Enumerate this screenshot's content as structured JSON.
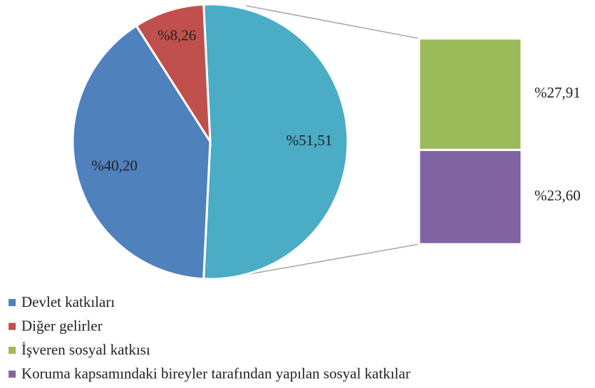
{
  "chart_data": {
    "type": "bar-of-pie",
    "categories": [
      "Devlet katkıları",
      "Diğer gelirler",
      "İşveren sosyal katkısı",
      "Koruma kapsamındaki bireyler tarafından yapılan sosyal katkılar"
    ],
    "values": [
      40.2,
      8.26,
      27.91,
      23.6
    ],
    "value_labels": [
      "%40,20",
      "%8,26",
      "%27,91",
      "%23,60"
    ],
    "colors": [
      "#4f81bd",
      "#c0504d",
      "#9bbb59",
      "#8064a2"
    ],
    "split_count": 2,
    "other": {
      "value": 51.51,
      "label": "%51,51",
      "color": "#4bacc6"
    }
  }
}
